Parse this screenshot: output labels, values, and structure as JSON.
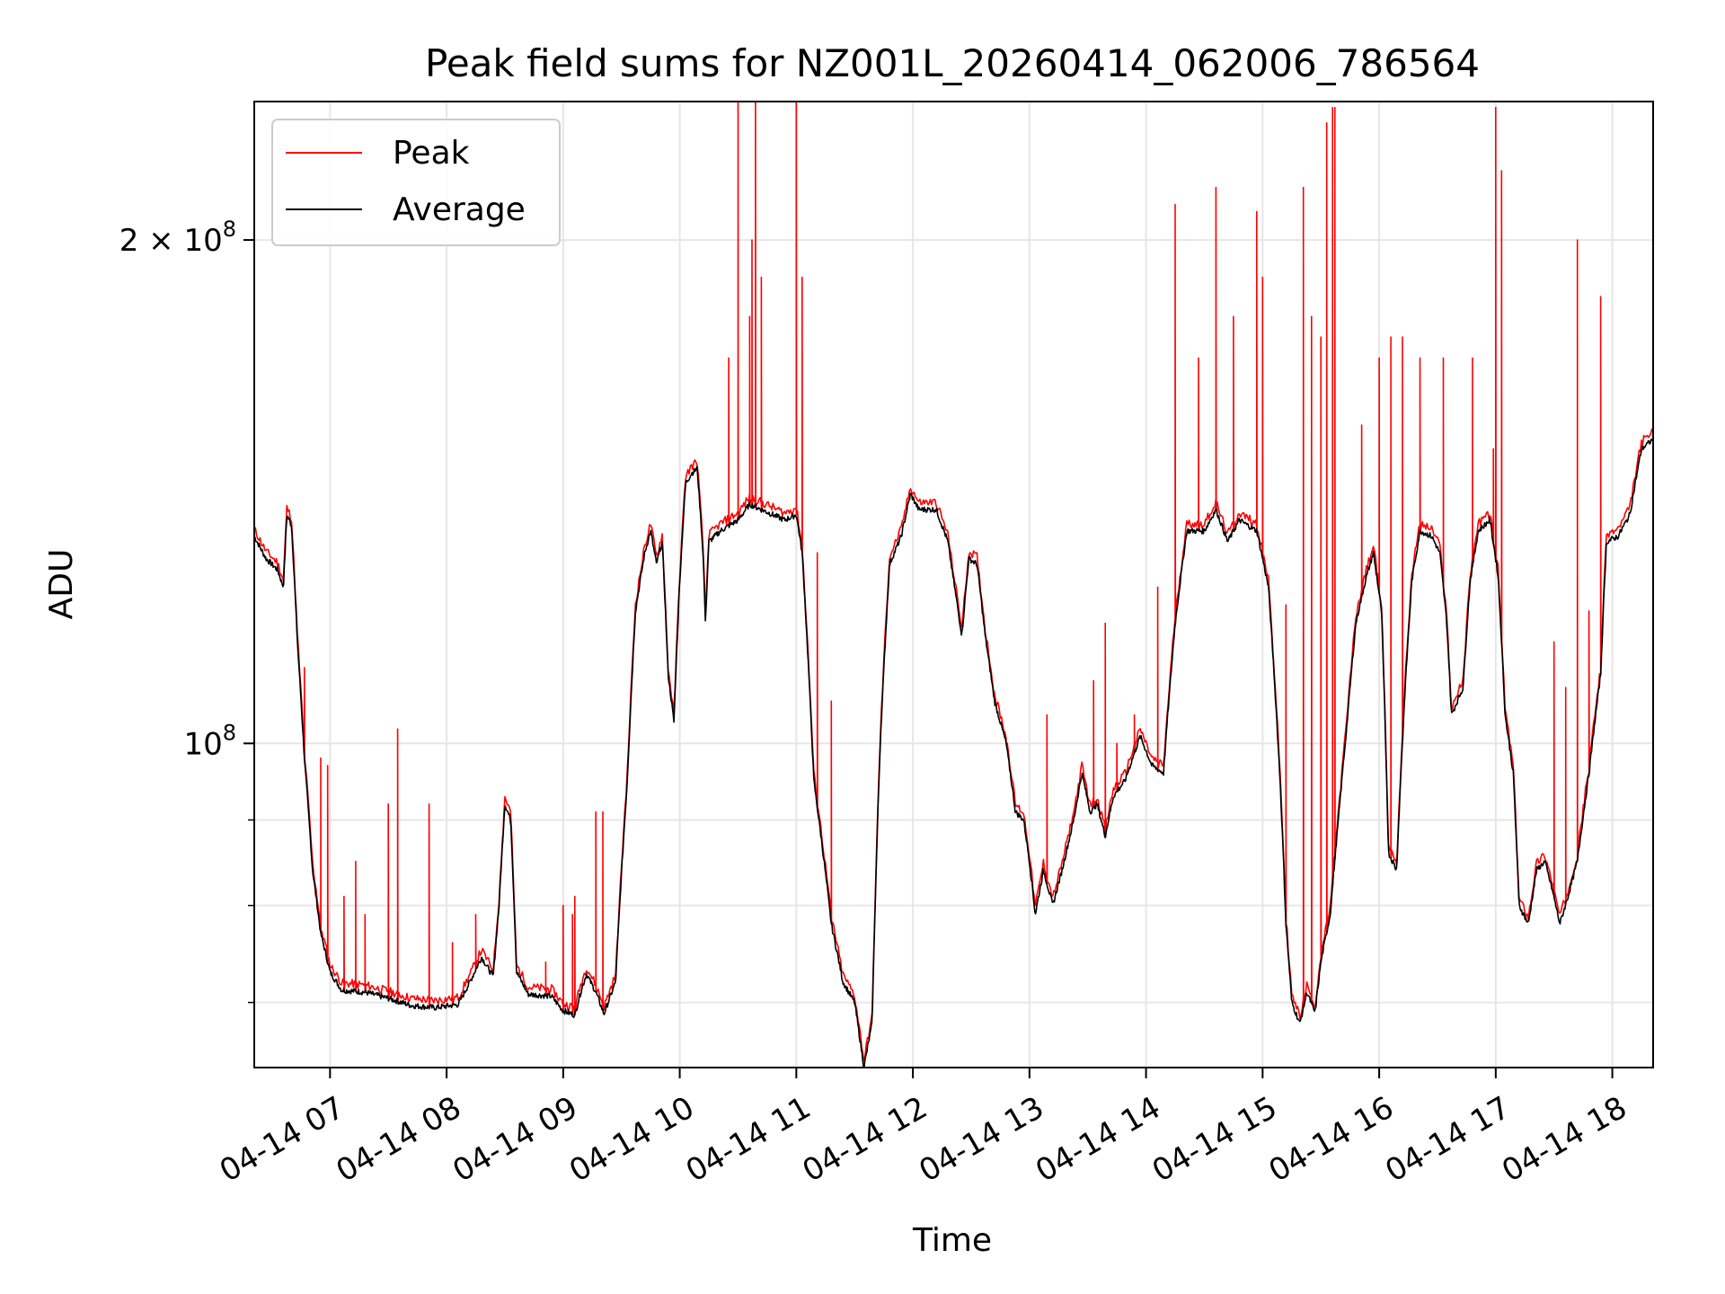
{
  "chart_data": {
    "type": "line",
    "title": "Peak field sums for NZ001L_20260414_062006_786564",
    "xlabel": "Time",
    "ylabel": "ADU",
    "yscale": "log",
    "ylim": [
      64000000,
      242000000
    ],
    "xlim": [
      6.35,
      18.35
    ],
    "grid": true,
    "legend_position": "top-left",
    "x_ticks": [
      7,
      8,
      9,
      10,
      11,
      12,
      13,
      14,
      15,
      16,
      17,
      18
    ],
    "x_tick_labels": [
      "04-14 07",
      "04-14 08",
      "04-14 09",
      "04-14 10",
      "04-14 11",
      "04-14 12",
      "04-14 13",
      "04-14 14",
      "04-14 15",
      "04-14 16",
      "04-14 17",
      "04-14 18"
    ],
    "y_major_ticks": [
      {
        "value": 100000000,
        "base": "10",
        "exp": "8",
        "coef": ""
      },
      {
        "value": 200000000,
        "base": "10",
        "exp": "8",
        "coef": "2 × "
      }
    ],
    "y_minor_ticks": [
      70000000,
      80000000,
      90000000,
      300000000
    ],
    "series": [
      {
        "name": "Average",
        "color": "#000000",
        "points": [
          [
            6.35,
            133000000
          ],
          [
            6.45,
            129000000
          ],
          [
            6.55,
            127000000
          ],
          [
            6.6,
            124000000
          ],
          [
            6.63,
            137000000
          ],
          [
            6.67,
            135000000
          ],
          [
            6.72,
            115000000
          ],
          [
            6.78,
            98000000
          ],
          [
            6.85,
            84000000
          ],
          [
            6.92,
            77000000
          ],
          [
            7.0,
            73000000
          ],
          [
            7.1,
            71200000
          ],
          [
            7.3,
            71000000
          ],
          [
            7.5,
            70400000
          ],
          [
            7.7,
            69700000
          ],
          [
            7.9,
            69500000
          ],
          [
            8.1,
            69800000
          ],
          [
            8.2,
            72000000
          ],
          [
            8.3,
            74500000
          ],
          [
            8.4,
            72500000
          ],
          [
            8.45,
            80000000
          ],
          [
            8.5,
            92000000
          ],
          [
            8.55,
            90000000
          ],
          [
            8.6,
            73000000
          ],
          [
            8.7,
            70800000
          ],
          [
            8.9,
            70600000
          ],
          [
            9.0,
            69200000
          ],
          [
            9.1,
            68800000
          ],
          [
            9.15,
            71000000
          ],
          [
            9.2,
            72800000
          ],
          [
            9.28,
            71000000
          ],
          [
            9.35,
            68900000
          ],
          [
            9.45,
            72000000
          ],
          [
            9.55,
            95000000
          ],
          [
            9.62,
            120000000
          ],
          [
            9.7,
            130000000
          ],
          [
            9.75,
            134000000
          ],
          [
            9.8,
            128000000
          ],
          [
            9.85,
            132000000
          ],
          [
            9.9,
            110000000
          ],
          [
            9.95,
            103000000
          ],
          [
            10.0,
            125000000
          ],
          [
            10.05,
            143000000
          ],
          [
            10.1,
            145000000
          ],
          [
            10.15,
            146000000
          ],
          [
            10.2,
            130000000
          ],
          [
            10.22,
            118000000
          ],
          [
            10.25,
            132000000
          ],
          [
            10.35,
            134000000
          ],
          [
            10.5,
            136000000
          ],
          [
            10.6,
            139000000
          ],
          [
            10.7,
            138000000
          ],
          [
            10.8,
            137000000
          ],
          [
            10.9,
            136000000
          ],
          [
            11.0,
            137000000
          ],
          [
            11.05,
            130000000
          ],
          [
            11.15,
            95000000
          ],
          [
            11.3,
            78000000
          ],
          [
            11.4,
            72000000
          ],
          [
            11.5,
            70000000
          ],
          [
            11.58,
            64000000
          ],
          [
            11.65,
            68000000
          ],
          [
            11.72,
            100000000
          ],
          [
            11.8,
            128000000
          ],
          [
            11.9,
            133000000
          ],
          [
            11.98,
            141000000
          ],
          [
            12.05,
            138000000
          ],
          [
            12.2,
            138000000
          ],
          [
            12.3,
            132000000
          ],
          [
            12.35,
            125000000
          ],
          [
            12.42,
            116000000
          ],
          [
            12.48,
            129000000
          ],
          [
            12.55,
            128000000
          ],
          [
            12.62,
            116000000
          ],
          [
            12.7,
            106000000
          ],
          [
            12.8,
            100000000
          ],
          [
            12.88,
            91000000
          ],
          [
            12.95,
            90000000
          ],
          [
            13.0,
            85000000
          ],
          [
            13.05,
            79000000
          ],
          [
            13.12,
            84000000
          ],
          [
            13.2,
            80000000
          ],
          [
            13.28,
            84000000
          ],
          [
            13.38,
            90000000
          ],
          [
            13.45,
            96000000
          ],
          [
            13.52,
            91000000
          ],
          [
            13.58,
            92000000
          ],
          [
            13.65,
            88000000
          ],
          [
            13.72,
            93000000
          ],
          [
            13.82,
            95000000
          ],
          [
            13.95,
            101000000
          ],
          [
            14.05,
            97000000
          ],
          [
            14.15,
            96000000
          ],
          [
            14.25,
            118000000
          ],
          [
            14.35,
            134000000
          ],
          [
            14.5,
            134000000
          ],
          [
            14.6,
            138000000
          ],
          [
            14.7,
            132000000
          ],
          [
            14.8,
            136000000
          ],
          [
            14.95,
            134000000
          ],
          [
            15.05,
            124000000
          ],
          [
            15.15,
            95000000
          ],
          [
            15.2,
            78000000
          ],
          [
            15.25,
            70000000
          ],
          [
            15.32,
            68000000
          ],
          [
            15.38,
            71000000
          ],
          [
            15.45,
            69000000
          ],
          [
            15.5,
            74000000
          ],
          [
            15.58,
            79000000
          ],
          [
            15.65,
            90000000
          ],
          [
            15.72,
            102000000
          ],
          [
            15.8,
            118000000
          ],
          [
            15.88,
            125000000
          ],
          [
            15.95,
            130000000
          ],
          [
            16.02,
            120000000
          ],
          [
            16.08,
            86000000
          ],
          [
            16.15,
            84000000
          ],
          [
            16.22,
            107000000
          ],
          [
            16.28,
            125000000
          ],
          [
            16.35,
            134000000
          ],
          [
            16.45,
            133000000
          ],
          [
            16.52,
            130000000
          ],
          [
            16.58,
            118000000
          ],
          [
            16.62,
            104000000
          ],
          [
            16.72,
            108000000
          ],
          [
            16.78,
            125000000
          ],
          [
            16.85,
            134000000
          ],
          [
            16.95,
            136000000
          ],
          [
            17.02,
            126000000
          ],
          [
            17.08,
            104000000
          ],
          [
            17.15,
            96000000
          ],
          [
            17.2,
            80000000
          ],
          [
            17.28,
            78000000
          ],
          [
            17.35,
            84000000
          ],
          [
            17.42,
            85000000
          ],
          [
            17.48,
            82000000
          ],
          [
            17.55,
            78000000
          ],
          [
            17.62,
            81000000
          ],
          [
            17.7,
            85000000
          ],
          [
            17.8,
            96000000
          ],
          [
            17.9,
            110000000
          ],
          [
            17.95,
            132000000
          ],
          [
            18.05,
            133000000
          ],
          [
            18.15,
            137000000
          ],
          [
            18.25,
            150000000
          ],
          [
            18.35,
            152000000
          ]
        ]
      },
      {
        "name": "Peak",
        "color": "#ff0000",
        "spikes": [
          [
            6.78,
            111000000
          ],
          [
            6.92,
            98000000
          ],
          [
            6.98,
            97000000
          ],
          [
            7.12,
            81000000
          ],
          [
            7.22,
            85000000
          ],
          [
            7.3,
            79000000
          ],
          [
            7.5,
            92000000
          ],
          [
            7.58,
            102000000
          ],
          [
            7.85,
            92000000
          ],
          [
            8.05,
            76000000
          ],
          [
            8.25,
            79000000
          ],
          [
            8.48,
            88000000
          ],
          [
            8.85,
            74000000
          ],
          [
            9.0,
            80000000
          ],
          [
            9.08,
            79000000
          ],
          [
            9.1,
            81000000
          ],
          [
            9.28,
            91000000
          ],
          [
            9.34,
            91000000
          ],
          [
            10.42,
            170000000
          ],
          [
            10.5,
            248000000
          ],
          [
            10.6,
            180000000
          ],
          [
            10.62,
            200000000
          ],
          [
            10.65,
            260000000
          ],
          [
            10.7,
            190000000
          ],
          [
            11.0,
            270000000
          ],
          [
            11.05,
            190000000
          ],
          [
            11.18,
            130000000
          ],
          [
            11.3,
            106000000
          ],
          [
            12.8,
            100000000
          ],
          [
            13.15,
            104000000
          ],
          [
            13.55,
            109000000
          ],
          [
            13.65,
            118000000
          ],
          [
            13.75,
            100000000
          ],
          [
            13.9,
            104000000
          ],
          [
            14.1,
            124000000
          ],
          [
            14.25,
            210000000
          ],
          [
            14.45,
            170000000
          ],
          [
            14.6,
            215000000
          ],
          [
            14.75,
            180000000
          ],
          [
            14.95,
            208000000
          ],
          [
            15.0,
            190000000
          ],
          [
            15.2,
            121000000
          ],
          [
            15.35,
            215000000
          ],
          [
            15.42,
            180000000
          ],
          [
            15.5,
            175000000
          ],
          [
            15.55,
            235000000
          ],
          [
            15.6,
            240000000
          ],
          [
            15.62,
            240000000
          ],
          [
            15.85,
            155000000
          ],
          [
            16.0,
            170000000
          ],
          [
            16.1,
            175000000
          ],
          [
            16.2,
            175000000
          ],
          [
            16.35,
            170000000
          ],
          [
            16.55,
            170000000
          ],
          [
            16.8,
            170000000
          ],
          [
            16.98,
            150000000
          ],
          [
            17.0,
            240000000
          ],
          [
            17.05,
            220000000
          ],
          [
            17.5,
            115000000
          ],
          [
            17.6,
            108000000
          ],
          [
            17.7,
            200000000
          ],
          [
            17.8,
            120000000
          ],
          [
            17.9,
            185000000
          ]
        ]
      }
    ]
  }
}
